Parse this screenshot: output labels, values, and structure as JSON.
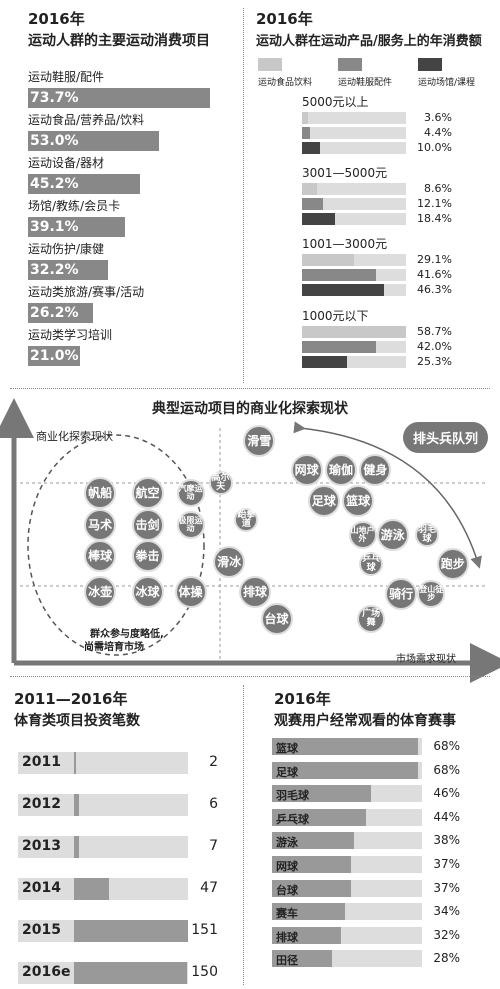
{
  "chart_data": [
    {
      "type": "bar",
      "year": "2016年",
      "title": "运动人群的主要运动消费项目",
      "categories": [
        "运动鞋服/配件",
        "运动食品/营养品/饮料",
        "运动设备/器材",
        "场馆/教练/会员卡",
        "运动伤护/康健",
        "运动类旅游/赛事/活动",
        "运动类学习培训"
      ],
      "values": [
        73.7,
        53.0,
        45.2,
        39.1,
        32.2,
        26.2,
        21.0
      ],
      "value_labels": [
        "73.7%",
        "53.0%",
        "45.2%",
        "39.1%",
        "32.2%",
        "26.2%",
        "21.0%"
      ]
    },
    {
      "type": "bar",
      "year": "2016年",
      "title": "运动人群在运动产品/服务上的年消费额",
      "series": [
        {
          "name": "运动食品饮料",
          "color": "#c8c8c8",
          "values": [
            3.6,
            8.6,
            29.1,
            58.7
          ],
          "labels": [
            "3.6%",
            "8.6%",
            "29.1%",
            "58.7%"
          ]
        },
        {
          "name": "运动鞋服配件",
          "color": "#888888",
          "values": [
            4.4,
            12.1,
            41.6,
            42.0
          ],
          "labels": [
            "4.4%",
            "12.1%",
            "41.6%",
            "42.0%"
          ]
        },
        {
          "name": "运动场馆/课程",
          "color": "#444444",
          "values": [
            10.0,
            18.4,
            46.3,
            25.3
          ],
          "labels": [
            "10.0%",
            "18.4%",
            "46.3%",
            "25.3%"
          ]
        }
      ],
      "categories": [
        "5000元以上",
        "3001—5000元",
        "1001—3000元",
        "1000元以下"
      ]
    },
    {
      "type": "scatter",
      "title": "典型运动项目的商业化探索现状",
      "ylabel": "商业化探索现状",
      "xlabel": "市场需求现状",
      "annotations": {
        "front": "排头兵队列",
        "circle_note_1": "群众参与度略低,",
        "circle_note_2": "尚需培育市场"
      },
      "items": [
        {
          "label": "帆船",
          "x": 14,
          "y": 70,
          "r": "l"
        },
        {
          "label": "航空",
          "x": 25,
          "y": 70,
          "r": "l"
        },
        {
          "label": "汽摩运动",
          "x": 35,
          "y": 70,
          "r": "m"
        },
        {
          "label": "马术",
          "x": 14,
          "y": 55,
          "r": "l"
        },
        {
          "label": "击剑",
          "x": 25,
          "y": 55,
          "r": "l"
        },
        {
          "label": "极限运动",
          "x": 35,
          "y": 55,
          "r": "m"
        },
        {
          "label": "棒球",
          "x": 14,
          "y": 40,
          "r": "l"
        },
        {
          "label": "拳击",
          "x": 25,
          "y": 40,
          "r": "l"
        },
        {
          "label": "冰壶",
          "x": 14,
          "y": 23,
          "r": "l"
        },
        {
          "label": "冰球",
          "x": 25,
          "y": 23,
          "r": "l"
        },
        {
          "label": "体操",
          "x": 35,
          "y": 23,
          "r": "l"
        },
        {
          "label": "高尔夫",
          "x": 42,
          "y": 75,
          "r": "s"
        },
        {
          "label": "滑雪",
          "x": 51,
          "y": 95,
          "r": "l"
        },
        {
          "label": "跆拳道",
          "x": 48,
          "y": 57,
          "r": "s"
        },
        {
          "label": "滑冰",
          "x": 44,
          "y": 37,
          "r": "l"
        },
        {
          "label": "排球",
          "x": 50,
          "y": 23,
          "r": "l"
        },
        {
          "label": "台球",
          "x": 55,
          "y": 10,
          "r": "l"
        },
        {
          "label": "网球",
          "x": 62,
          "y": 81,
          "r": "l"
        },
        {
          "label": "瑜伽",
          "x": 70,
          "y": 81,
          "r": "l"
        },
        {
          "label": "健身",
          "x": 78,
          "y": 81,
          "r": "l"
        },
        {
          "label": "足球",
          "x": 66,
          "y": 66,
          "r": "l"
        },
        {
          "label": "篮球",
          "x": 74,
          "y": 66,
          "r": "l"
        },
        {
          "label": "山地户外",
          "x": 75,
          "y": 50,
          "r": "m"
        },
        {
          "label": "游泳",
          "x": 82,
          "y": 50,
          "r": "l"
        },
        {
          "label": "羽毛球",
          "x": 90,
          "y": 50,
          "r": "s"
        },
        {
          "label": "乒乓球",
          "x": 77,
          "y": 36,
          "r": "s"
        },
        {
          "label": "跑步",
          "x": 96,
          "y": 36,
          "r": "l"
        },
        {
          "label": "骑行",
          "x": 84,
          "y": 22,
          "r": "l"
        },
        {
          "label": "登山徒步",
          "x": 91,
          "y": 22,
          "r": "m"
        },
        {
          "label": "广场舞",
          "x": 77,
          "y": 10,
          "r": "m"
        }
      ]
    },
    {
      "type": "bar",
      "year_range": "2011—2016年",
      "title": "体育类项目投资笔数",
      "categories": [
        "2011",
        "2012",
        "2013",
        "2014",
        "2015",
        "2016e"
      ],
      "values": [
        2,
        6,
        7,
        47,
        151,
        150
      ]
    },
    {
      "type": "bar",
      "year": "2016年",
      "title": "观赛用户经常观看的体育赛事",
      "categories": [
        "篮球",
        "足球",
        "羽毛球",
        "乒乓球",
        "游泳",
        "网球",
        "台球",
        "赛车",
        "排球",
        "田径"
      ],
      "values": [
        68,
        68,
        46,
        44,
        38,
        37,
        37,
        34,
        32,
        28
      ],
      "value_labels": [
        "68%",
        "68%",
        "46%",
        "44%",
        "38%",
        "37%",
        "37%",
        "34%",
        "32%",
        "28%"
      ]
    }
  ]
}
